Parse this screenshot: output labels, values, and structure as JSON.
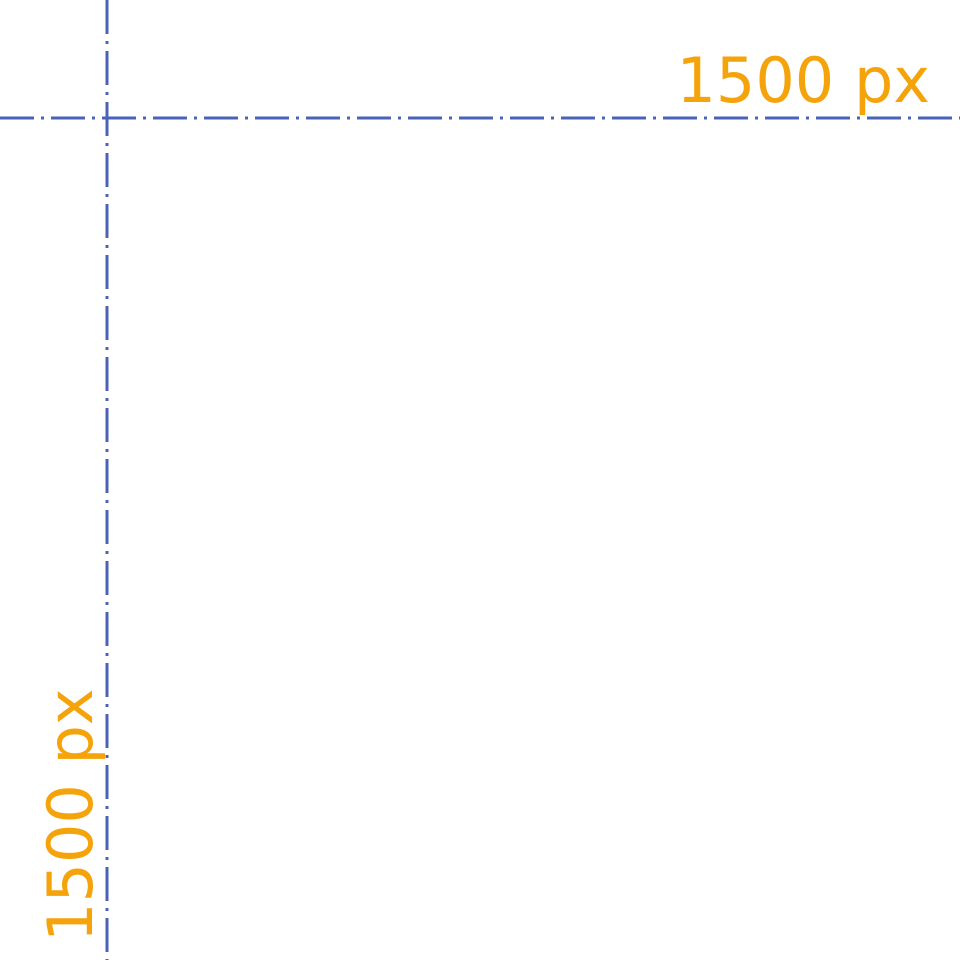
{
  "guides": {
    "line_color": "#4a63b8",
    "label_color": "#f5a30a",
    "horizontal": {
      "label": "1500 px"
    },
    "vertical": {
      "label": "1500 px"
    }
  }
}
